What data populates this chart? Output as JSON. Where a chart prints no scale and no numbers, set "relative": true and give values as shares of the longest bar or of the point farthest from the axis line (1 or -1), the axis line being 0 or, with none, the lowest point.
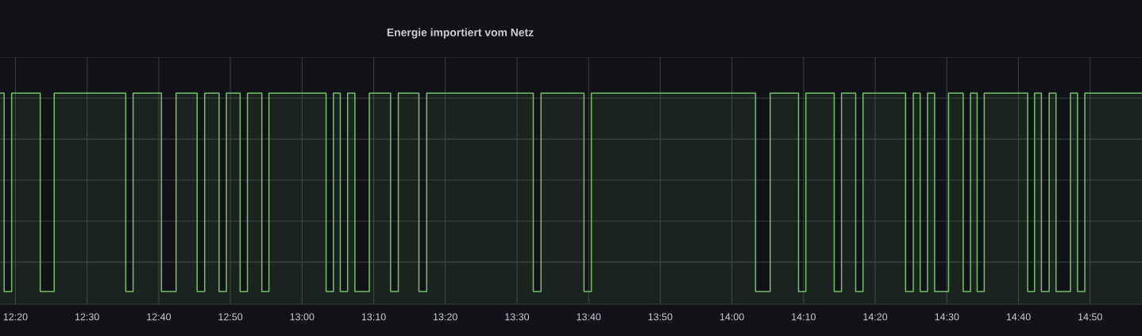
{
  "chart_data": {
    "type": "area",
    "title": "Energie importiert vom Netz",
    "relative": true,
    "x": [
      12.2974,
      12.307,
      12.307,
      12.3245,
      12.3245,
      12.391,
      12.391,
      12.4235,
      12.4235,
      12.59,
      12.59,
      12.607,
      12.607,
      12.673,
      12.673,
      12.707,
      12.707,
      12.756,
      12.756,
      12.7735,
      12.7735,
      12.807,
      12.807,
      12.824,
      12.824,
      12.856,
      12.856,
      12.873,
      12.873,
      12.9065,
      12.9065,
      12.923,
      12.923,
      13.056,
      13.056,
      13.073,
      13.073,
      13.089,
      13.089,
      13.106,
      13.106,
      13.123,
      13.123,
      13.1565,
      13.1565,
      13.206,
      13.206,
      13.224,
      13.224,
      13.272,
      13.272,
      13.29,
      13.29,
      13.538,
      13.538,
      13.556,
      13.556,
      13.656,
      13.656,
      13.673,
      13.673,
      14.055,
      14.055,
      14.089,
      14.089,
      14.155,
      14.155,
      14.172,
      14.172,
      14.238,
      14.238,
      14.255,
      14.255,
      14.288,
      14.288,
      14.305,
      14.305,
      14.404,
      14.404,
      14.422,
      14.422,
      14.438,
      14.438,
      14.455,
      14.455,
      14.4715,
      14.4715,
      14.504,
      14.504,
      14.538,
      14.538,
      14.555,
      14.555,
      14.5705,
      14.5705,
      14.587,
      14.587,
      14.688,
      14.688,
      14.704,
      14.704,
      14.72,
      14.72,
      14.738,
      14.738,
      14.754,
      14.754,
      14.7875,
      14.7875,
      14.804,
      14.804,
      14.821,
      14.821,
      14.954
    ],
    "series": [
      {
        "color": "#73bf69",
        "values": [
          1,
          1,
          0.06,
          0.06,
          1,
          1,
          0.06,
          0.06,
          1,
          1,
          0.06,
          0.06,
          1,
          1,
          0.06,
          0.06,
          1,
          1,
          0.06,
          0.06,
          1,
          1,
          0.06,
          0.06,
          1,
          1,
          0.06,
          0.06,
          1,
          1,
          0.06,
          0.06,
          1,
          1,
          0.06,
          0.06,
          1,
          1,
          0.06,
          0.06,
          1,
          1,
          0.06,
          0.06,
          1,
          1,
          0.06,
          0.06,
          1,
          1,
          0.06,
          0.06,
          1,
          1,
          0.06,
          0.06,
          1,
          1,
          0.06,
          0.06,
          1,
          1,
          0.06,
          0.06,
          1,
          1,
          0.06,
          0.06,
          1,
          1,
          0.06,
          0.06,
          1,
          1,
          0.06,
          0.06,
          1,
          1,
          0.06,
          0.06,
          1,
          1,
          0.06,
          0.06,
          1,
          1,
          0.06,
          0.06,
          1,
          1,
          0.06,
          0.06,
          1,
          1,
          0.06,
          0.06,
          1,
          1,
          0.06,
          0.06,
          1,
          1,
          0.06,
          0.06,
          1,
          1,
          0.06,
          0.06,
          1,
          1,
          0.06,
          0.06,
          1,
          1
        ]
      }
    ],
    "xlim": [
      12.2974,
      14.954
    ],
    "xticks": [
      {
        "value": 12.3333,
        "label": "12:20"
      },
      {
        "value": 12.5,
        "label": "12:30"
      },
      {
        "value": 12.6667,
        "label": "12:40"
      },
      {
        "value": 12.8333,
        "label": "12:50"
      },
      {
        "value": 13.0,
        "label": "13:00"
      },
      {
        "value": 13.1667,
        "label": "13:10"
      },
      {
        "value": 13.3333,
        "label": "13:20"
      },
      {
        "value": 13.5,
        "label": "13:30"
      },
      {
        "value": 13.6667,
        "label": "13:40"
      },
      {
        "value": 13.8333,
        "label": "13:50"
      },
      {
        "value": 14.0,
        "label": "14:00"
      },
      {
        "value": 14.1667,
        "label": "14:10"
      },
      {
        "value": 14.3333,
        "label": "14:20"
      },
      {
        "value": 14.5,
        "label": "14:30"
      },
      {
        "value": 14.6667,
        "label": "14:40"
      },
      {
        "value": 14.8333,
        "label": "14:50"
      }
    ],
    "tick_labels": "x",
    "grid": true,
    "line_style": "solid",
    "marker": "none"
  }
}
